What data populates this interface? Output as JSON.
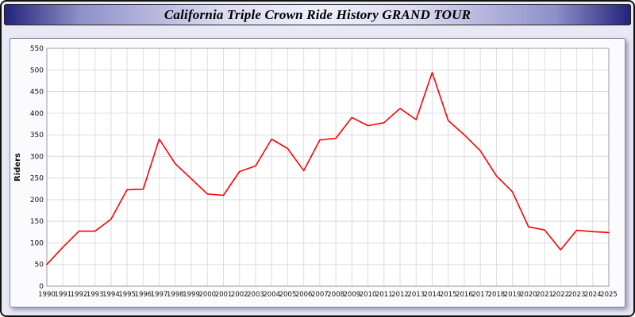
{
  "title": "California Triple Crown Ride History GRAND TOUR",
  "chart_data": {
    "type": "line",
    "title": "California Triple Crown Ride History GRAND TOUR",
    "xlabel": "",
    "ylabel": "Riders",
    "ylim": [
      0,
      550
    ],
    "y_ticks": [
      0,
      50,
      100,
      150,
      200,
      250,
      300,
      350,
      400,
      450,
      500,
      550
    ],
    "grid": true,
    "legend": "none",
    "line_color": "#ff0000",
    "categories": [
      "1990",
      "1991",
      "1992",
      "1993",
      "1994",
      "1995",
      "1996",
      "1997",
      "1998",
      "1999",
      "2000",
      "2001",
      "2002",
      "2003",
      "2004",
      "2005",
      "2006",
      "2007",
      "2008",
      "2009",
      "2010",
      "2011",
      "2012",
      "2013",
      "2014",
      "2015",
      "2016",
      "2017",
      "2018",
      "2019",
      "2020",
      "2021",
      "2022",
      "2023",
      "2024",
      "2025"
    ],
    "series": [
      {
        "name": "Riders",
        "values": [
          50,
          90,
          127,
          127,
          155,
          223,
          224,
          340,
          283,
          248,
          213,
          210,
          265,
          278,
          340,
          318,
          267,
          338,
          342,
          390,
          371,
          378,
          411,
          385,
          494,
          383,
          350,
          313,
          255,
          218,
          137,
          130,
          84,
          129,
          126,
          124
        ]
      }
    ]
  }
}
